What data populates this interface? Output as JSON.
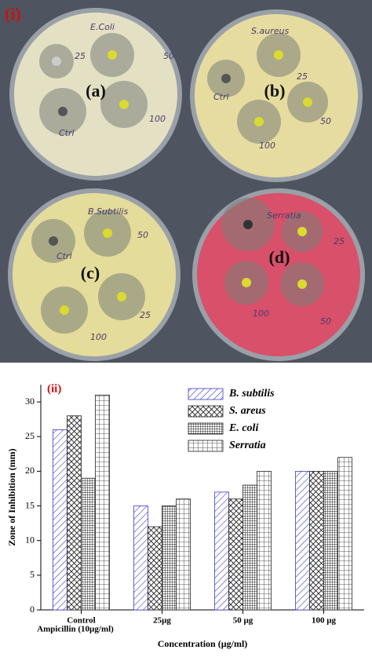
{
  "photo": {
    "panel_label": "(i)",
    "dishes": [
      {
        "label": "(a)",
        "name": "E.Coli",
        "discs": [
          "25",
          "50",
          "100",
          "Ctrl"
        ]
      },
      {
        "label": "(b)",
        "name": "S.aureus",
        "discs": [
          "25",
          "50",
          "100",
          "Ctrl"
        ]
      },
      {
        "label": "(c)",
        "name": "B.Subtilis",
        "discs": [
          "50",
          "25",
          "100",
          "Ctrl"
        ]
      },
      {
        "label": "(d)",
        "name": "Serratia",
        "discs": [
          "25",
          "50",
          "100"
        ]
      }
    ]
  },
  "chart_data": {
    "type": "bar",
    "panel_label": "(ii)",
    "x_label": "Concentration (µg/ml)",
    "y_label": "Zone of Inhibition (mm)",
    "annotation": "Ampicillin (10µg/ml)",
    "categories": [
      "Control",
      "25µg",
      "50 µg",
      "100 µg"
    ],
    "series": [
      {
        "name": "B. subtilis",
        "color": "#3b3bd0",
        "values": [
          26,
          15,
          17,
          20
        ]
      },
      {
        "name": "S. areus",
        "color": "#222222",
        "values": [
          28,
          12,
          16,
          20
        ]
      },
      {
        "name": "E. coli",
        "color": "#222222",
        "values": [
          19,
          15,
          18,
          20
        ]
      },
      {
        "name": "Serratia",
        "color": "#222222",
        "values": [
          31,
          16,
          20,
          22
        ]
      }
    ],
    "ylim": [
      0,
      32.5
    ],
    "yticks": [
      0,
      5,
      10,
      15,
      20,
      25,
      30
    ]
  }
}
